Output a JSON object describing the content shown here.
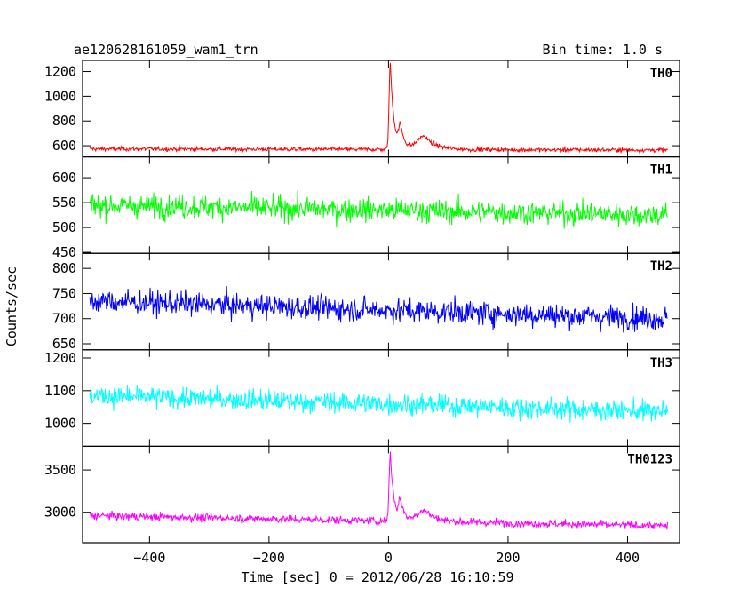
{
  "header": {
    "obs_id": "ae120628161059_wam1_trn",
    "bin_time": "Bin time: 1.0 s"
  },
  "chart_data": {
    "type": "line",
    "xlabel": "Time [sec] 0 = 2012/06/28 16:10:59",
    "ylabel": "Counts/sec",
    "xlim": [
      -512,
      487
    ],
    "xticks": [
      -400,
      -200,
      0,
      200,
      400
    ],
    "xtick_labels": [
      "−400",
      "−200",
      "0",
      "200",
      "400"
    ],
    "data_range_x": [
      -500,
      467
    ],
    "grid": false,
    "panels": [
      {
        "name": "TH0",
        "color": "#ff0000",
        "ylim": [
          510,
          1290
        ],
        "yticks": [
          600,
          800,
          1000,
          1200
        ],
        "ytick_labels": [
          "600",
          "800",
          "1000",
          "1200"
        ],
        "baseline_start": 575,
        "baseline_end": 565,
        "noise": 20,
        "peaks": [
          {
            "t": 3,
            "amp": 700,
            "rise": 2,
            "decay": 6
          },
          {
            "t": 20,
            "amp": 170,
            "rise": 3,
            "decay": 7
          },
          {
            "t": 60,
            "amp": 110,
            "rise": 12,
            "decay": 18
          }
        ]
      },
      {
        "name": "TH1",
        "color": "#00ff00",
        "ylim": [
          448,
          642
        ],
        "yticks": [
          450,
          500,
          550,
          600
        ],
        "ytick_labels": [
          "450",
          "500",
          "550",
          "600"
        ],
        "baseline_start": 545,
        "baseline_end": 525,
        "noise": 28,
        "peaks": []
      },
      {
        "name": "TH2",
        "color": "#0000ff",
        "ylim": [
          638,
          830
        ],
        "yticks": [
          650,
          700,
          750,
          800
        ],
        "ytick_labels": [
          "650",
          "700",
          "750",
          "800"
        ],
        "baseline_start": 735,
        "baseline_end": 700,
        "noise": 28,
        "peaks": []
      },
      {
        "name": "TH3",
        "color": "#00ffff",
        "ylim": [
          930,
          1225
        ],
        "yticks": [
          1000,
          1100,
          1200
        ],
        "ytick_labels": [
          "1000",
          "1100",
          "1200"
        ],
        "baseline_start": 1085,
        "baseline_end": 1035,
        "noise": 38,
        "peaks": []
      },
      {
        "name": "TH0123",
        "color": "#ff00ff",
        "ylim": [
          2640,
          3780
        ],
        "yticks": [
          3000,
          3500
        ],
        "ytick_labels": [
          "3000",
          "3500"
        ],
        "baseline_start": 2960,
        "baseline_end": 2840,
        "noise": 55,
        "peaks": [
          {
            "t": 3,
            "amp": 800,
            "rise": 2,
            "decay": 6
          },
          {
            "t": 20,
            "amp": 220,
            "rise": 3,
            "decay": 7
          },
          {
            "t": 60,
            "amp": 140,
            "rise": 12,
            "decay": 18
          }
        ]
      }
    ]
  }
}
